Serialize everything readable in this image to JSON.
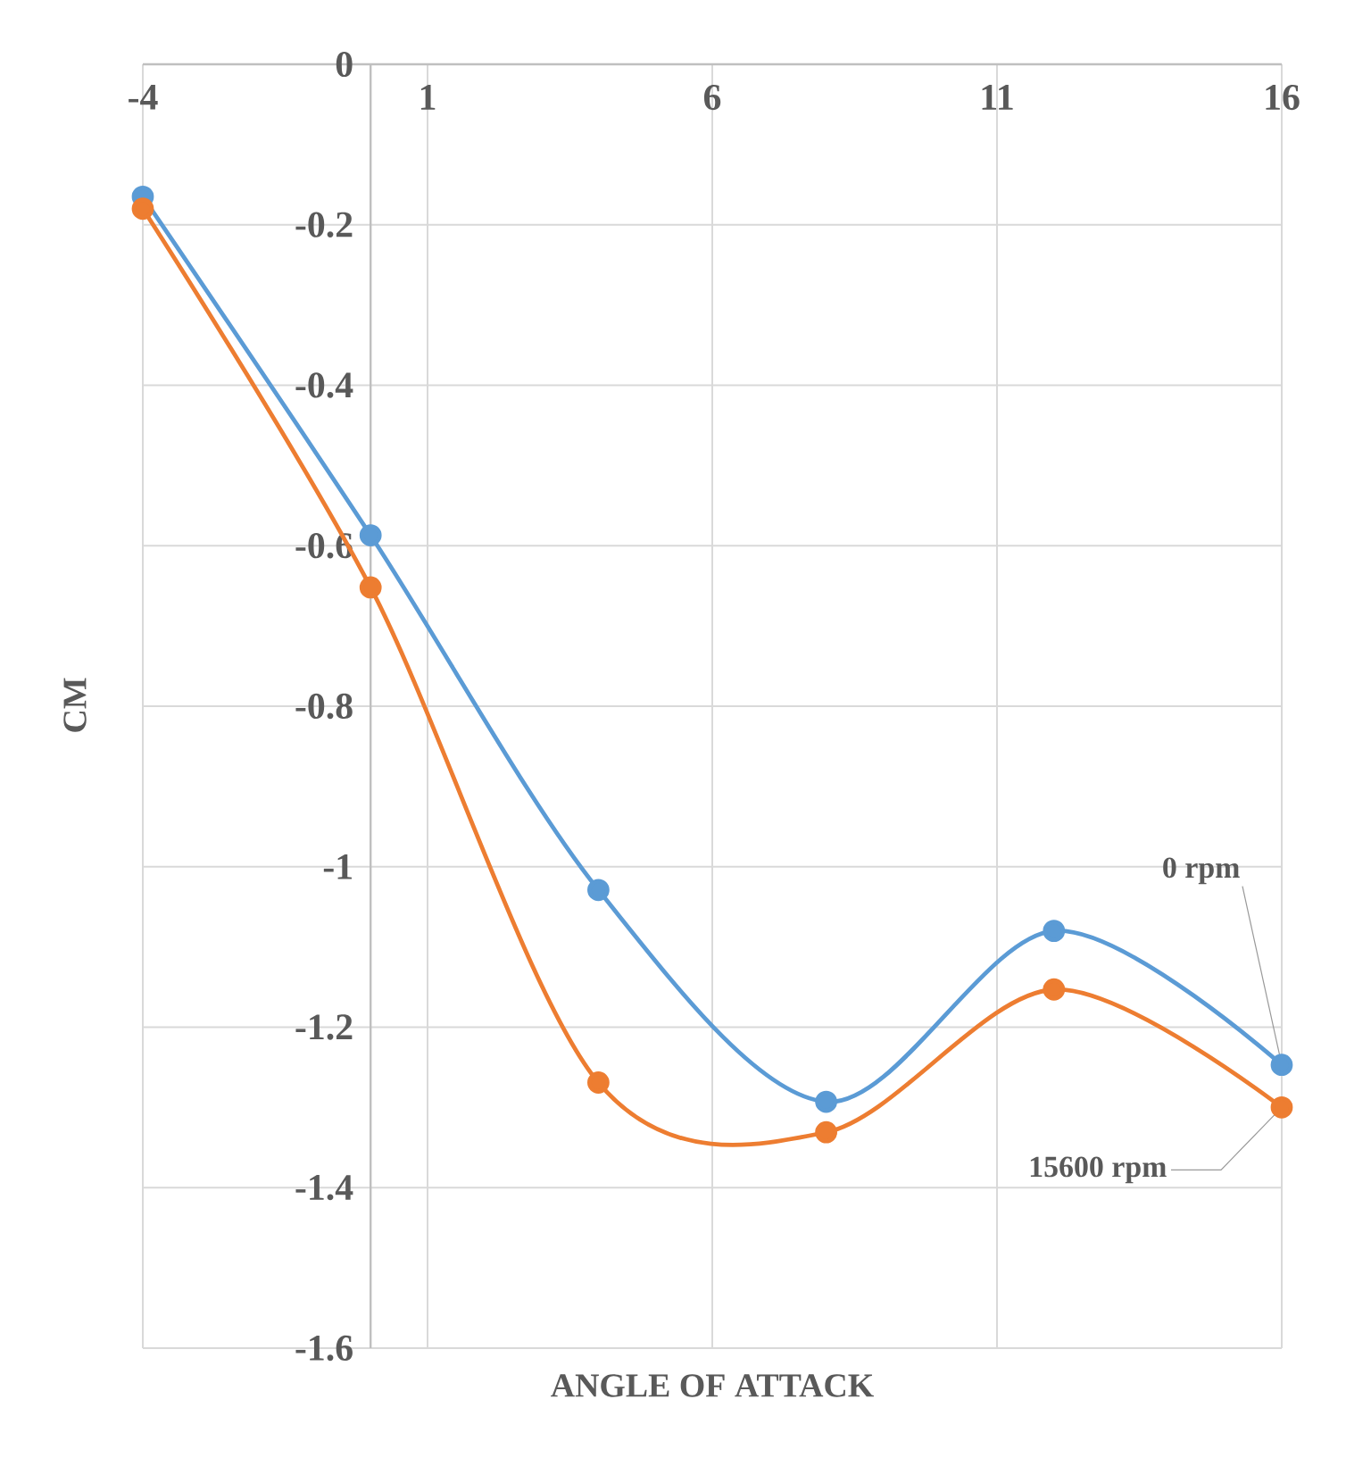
{
  "chart_data": {
    "type": "line",
    "xlabel": "ANGLE OF ATTACK",
    "ylabel": "CM",
    "x": [
      -4,
      0,
      4,
      8,
      12,
      16
    ],
    "series": [
      {
        "name": "0 rpm",
        "color": "#5b9bd5",
        "values": [
          -0.165,
          -0.587,
          -1.029,
          -1.293,
          -1.08,
          -1.247
        ]
      },
      {
        "name": "15600 rpm",
        "color": "#ed7d31",
        "values": [
          -0.18,
          -0.652,
          -1.269,
          -1.331,
          -1.153,
          -1.3
        ]
      }
    ],
    "xlim": [
      -4,
      16
    ],
    "xticks": [
      -4,
      1,
      6,
      11,
      16
    ],
    "ylim": [
      -1.6,
      0
    ],
    "yticks": [
      0,
      -0.2,
      -0.4,
      -0.6,
      -0.8,
      -1,
      -1.2,
      -1.4,
      -1.6
    ],
    "grid": true,
    "marker": "circle",
    "line_style": "solid"
  }
}
